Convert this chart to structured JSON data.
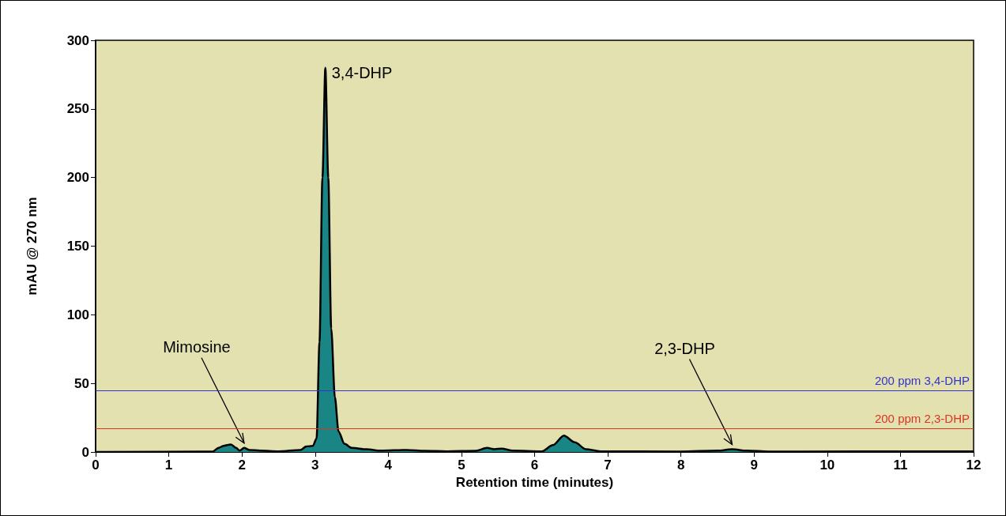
{
  "chart_data": {
    "type": "area",
    "xlabel": "Retention time (minutes)",
    "ylabel": "mAU @ 270 nm",
    "xlim": [
      0,
      12
    ],
    "xticks": [
      0,
      1,
      2,
      3,
      4,
      5,
      6,
      7,
      8,
      9,
      10,
      11,
      12
    ],
    "ylim": [
      0,
      300
    ],
    "yticks": [
      0,
      50,
      100,
      150,
      200,
      250,
      300
    ],
    "grid": false,
    "marker": "none",
    "series": [
      {
        "color": "#1a8585",
        "x": [
          0,
          1.6,
          1.68,
          1.75,
          1.85,
          1.92,
          1.97,
          2.03,
          2.1,
          2.25,
          2.5,
          2.8,
          2.88,
          2.97,
          3.02,
          3.06,
          3.1,
          3.14,
          3.18,
          3.22,
          3.27,
          3.32,
          3.4,
          3.5,
          3.7,
          3.9,
          4.25,
          4.5,
          4.8,
          5.2,
          5.35,
          5.45,
          5.55,
          5.7,
          6.1,
          6.25,
          6.4,
          6.55,
          6.7,
          6.9,
          8.0,
          8.5,
          8.7,
          8.9,
          9.2,
          12
        ],
        "values": [
          0,
          0.3,
          3,
          4.5,
          5.5,
          3,
          1,
          3,
          1.5,
          1,
          0.5,
          1.5,
          4,
          4.5,
          10,
          80,
          200,
          280,
          200,
          90,
          40,
          15,
          6,
          3,
          2,
          1,
          1.5,
          0.8,
          0.5,
          0.8,
          3,
          2,
          2.5,
          1,
          0.5,
          5,
          12,
          7,
          2,
          0.5,
          0.3,
          1,
          2,
          1,
          0.3,
          0.5
        ]
      }
    ],
    "ref_lines": [
      {
        "axis": "y",
        "value": 45,
        "label": "200 ppm 3,4-DHP",
        "color": "#3333cc"
      },
      {
        "axis": "y",
        "value": 17,
        "label": "200 ppm 2,3-DHP",
        "color": "#dd3322"
      }
    ],
    "annotations": [
      {
        "text": "3,4-DHP",
        "x": 3.14,
        "y": 280
      },
      {
        "text": "Mimosine",
        "x": 2.03,
        "y": 3
      },
      {
        "text": "2,3-DHP",
        "x": 8.7,
        "y": 2
      }
    ]
  }
}
